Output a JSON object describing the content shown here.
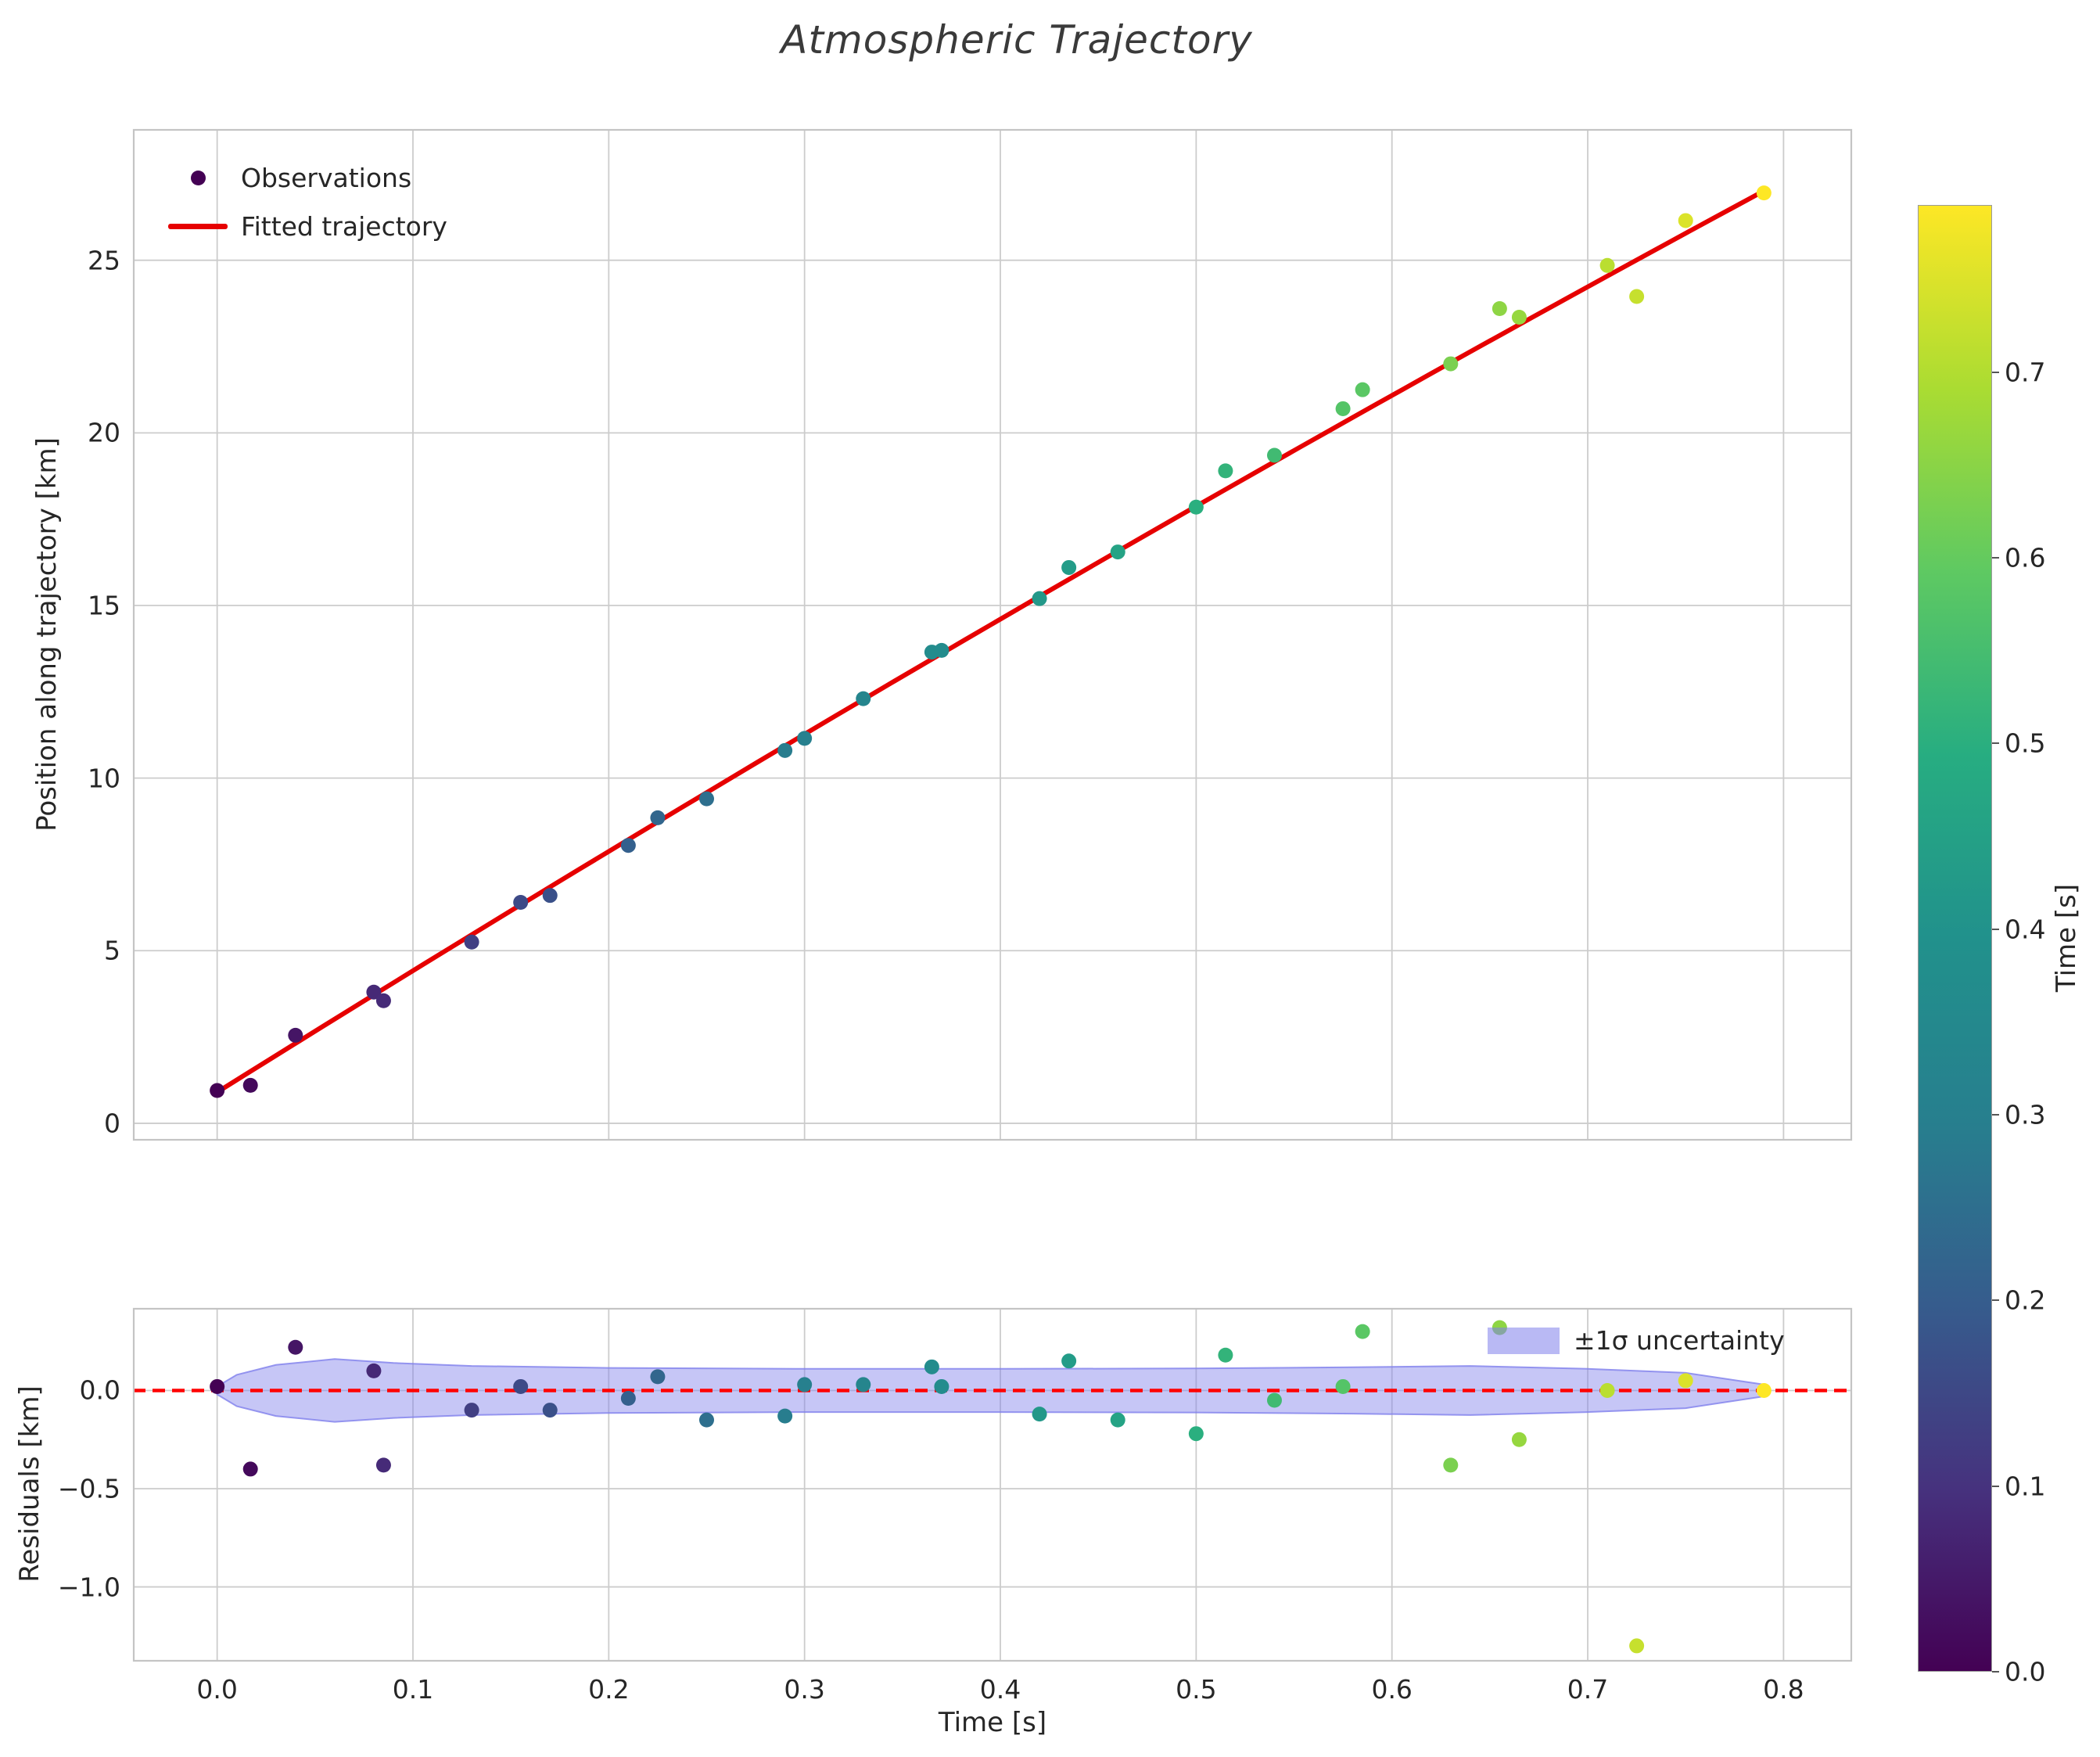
{
  "figure": {
    "title": "Atmospheric Trajectory",
    "background": "#ffffff",
    "grid_color": "#cccccc",
    "spine_color": "#c4c4c4",
    "text_color": "#262626"
  },
  "chart_data": [
    {
      "id": "trajectory",
      "type": "scatter",
      "title": "",
      "xlabel": "",
      "ylabel": "Position along trajectory [km]",
      "xlim": [
        -0.043,
        0.835
      ],
      "ylim": [
        -0.5,
        28.8
      ],
      "grid": true,
      "xtick_values": [
        0.0,
        0.1,
        0.2,
        0.3,
        0.4,
        0.5,
        0.6,
        0.7,
        0.8
      ],
      "ytick_values": [
        0,
        5,
        10,
        15,
        20,
        25
      ],
      "ytick_labels": [
        "0",
        "5",
        "10",
        "15",
        "20",
        "25"
      ],
      "legend": {
        "position": "upper left",
        "entries": [
          "Observations",
          "Fitted trajectory"
        ],
        "marker_color": "#440154"
      },
      "series": [
        {
          "name": "Observations",
          "type": "scatter",
          "color_by": "x",
          "colormap": "viridis",
          "x": [
            0.0,
            0.017,
            0.04,
            0.08,
            0.085,
            0.13,
            0.155,
            0.17,
            0.21,
            0.225,
            0.25,
            0.29,
            0.3,
            0.33,
            0.365,
            0.37,
            0.42,
            0.435,
            0.46,
            0.5,
            0.515,
            0.54,
            0.575,
            0.585,
            0.63,
            0.655,
            0.665,
            0.71,
            0.725,
            0.75,
            0.79
          ],
          "y": [
            0.95,
            1.1,
            2.55,
            3.8,
            3.55,
            5.25,
            6.4,
            6.6,
            8.05,
            8.85,
            9.4,
            10.8,
            11.15,
            12.3,
            13.65,
            13.7,
            15.2,
            16.1,
            16.55,
            17.85,
            18.9,
            19.35,
            20.7,
            21.25,
            22.0,
            23.6,
            23.35,
            24.85,
            23.95,
            26.15,
            26.95
          ]
        },
        {
          "name": "Fitted trajectory",
          "type": "line",
          "fit": "quadratic",
          "coeffs": [
            0.9,
            35.5,
            -3.1
          ],
          "x_range": [
            0.0,
            0.79
          ],
          "color": "#e60000",
          "linewidth": 6
        }
      ]
    },
    {
      "id": "residuals",
      "type": "scatter",
      "title": "",
      "xlabel": "Time [s]",
      "ylabel": "Residuals [km]",
      "xlim": [
        -0.043,
        0.835
      ],
      "ylim": [
        -1.38,
        0.42
      ],
      "grid": true,
      "xtick_values": [
        0.0,
        0.1,
        0.2,
        0.3,
        0.4,
        0.5,
        0.6,
        0.7,
        0.8
      ],
      "xtick_labels": [
        "0.0",
        "0.1",
        "0.2",
        "0.3",
        "0.4",
        "0.5",
        "0.6",
        "0.7",
        "0.8"
      ],
      "ytick_values": [
        0.0,
        -0.5,
        -1.0
      ],
      "ytick_labels": [
        "0.0",
        "−0.5",
        "−1.0"
      ],
      "zero_line": {
        "color": "#ff0000",
        "dashed": true
      },
      "band": {
        "label": "±1σ uncertainty",
        "color": "#8080ec",
        "t": [
          0.0,
          0.01,
          0.03,
          0.06,
          0.09,
          0.13,
          0.2,
          0.3,
          0.4,
          0.5,
          0.58,
          0.64,
          0.7,
          0.75,
          0.79
        ],
        "hi": [
          0.02,
          0.08,
          0.13,
          0.16,
          0.14,
          0.125,
          0.115,
          0.11,
          0.11,
          0.112,
          0.118,
          0.125,
          0.11,
          0.09,
          0.03
        ],
        "lo": [
          -0.02,
          -0.08,
          -0.13,
          -0.16,
          -0.14,
          -0.125,
          -0.115,
          -0.11,
          -0.11,
          -0.112,
          -0.118,
          -0.125,
          -0.11,
          -0.09,
          -0.03
        ]
      },
      "points": {
        "color_by": "x",
        "colormap": "viridis",
        "x": [
          0.0,
          0.017,
          0.04,
          0.08,
          0.085,
          0.13,
          0.155,
          0.17,
          0.21,
          0.225,
          0.25,
          0.29,
          0.3,
          0.33,
          0.365,
          0.37,
          0.42,
          0.435,
          0.46,
          0.5,
          0.515,
          0.54,
          0.575,
          0.585,
          0.63,
          0.655,
          0.665,
          0.71,
          0.725,
          0.75,
          0.79
        ],
        "y": [
          0.02,
          -0.4,
          0.22,
          0.1,
          -0.38,
          -0.1,
          0.02,
          -0.1,
          -0.04,
          0.07,
          -0.15,
          -0.13,
          0.03,
          0.03,
          0.12,
          0.02,
          -0.12,
          0.15,
          -0.15,
          -0.22,
          0.18,
          -0.05,
          0.02,
          0.3,
          -0.38,
          0.32,
          -0.25,
          0.0,
          -1.3,
          0.05,
          0.0
        ]
      }
    }
  ],
  "colorbar": {
    "label": "Time [s]",
    "vmin": 0.0,
    "vmax": 0.79,
    "tick_values": [
      0.0,
      0.1,
      0.2,
      0.3,
      0.4,
      0.5,
      0.6,
      0.7
    ],
    "tick_labels": [
      "0.0",
      "0.1",
      "0.2",
      "0.3",
      "0.4",
      "0.5",
      "0.6",
      "0.7"
    ],
    "colormap": {
      "positions": [
        0.0,
        0.125,
        0.25,
        0.375,
        0.5,
        0.625,
        0.75,
        0.875,
        1.0
      ],
      "colors": [
        "#440154",
        "#46327e",
        "#365c8d",
        "#277f8e",
        "#21918c",
        "#27ad81",
        "#5ec962",
        "#aadc32",
        "#fde725"
      ]
    }
  }
}
